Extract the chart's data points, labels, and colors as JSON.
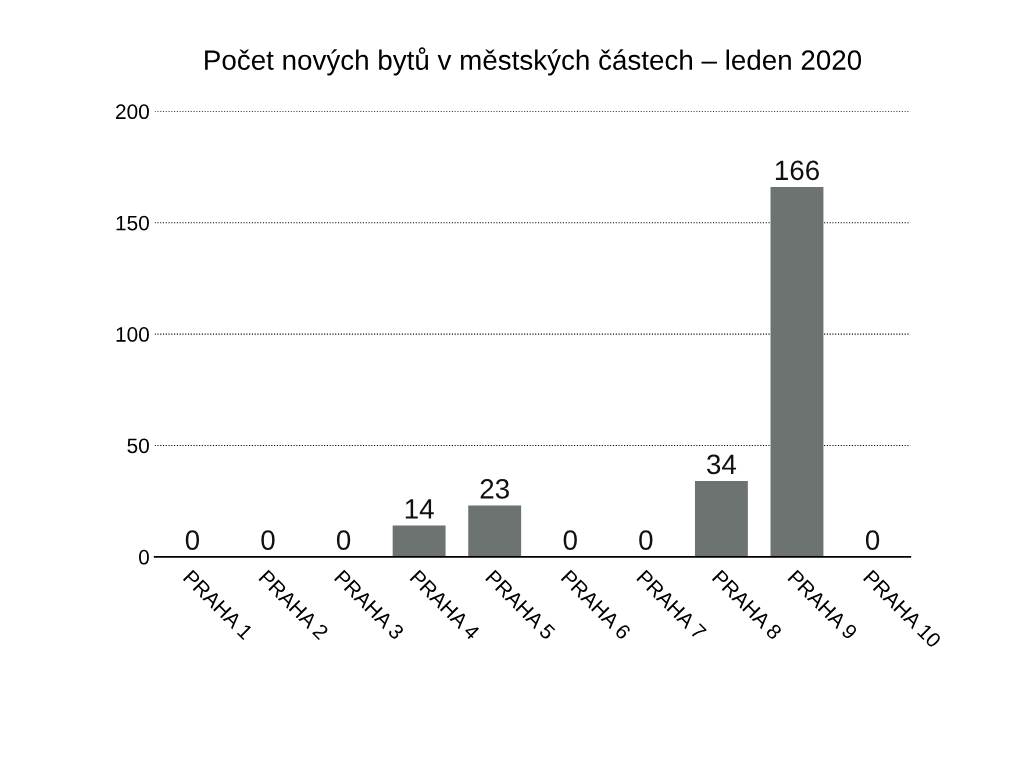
{
  "chart_data": {
    "type": "bar",
    "title": "Počet nových bytů v městských částech – leden 2020",
    "categories": [
      "PRAHA 1",
      "PRAHA 2",
      "PRAHA 3",
      "PRAHA 4",
      "PRAHA 5",
      "PRAHA 6",
      "PRAHA 7",
      "PRAHA 8",
      "PRAHA 9",
      "PRAHA 10"
    ],
    "values": [
      0,
      0,
      0,
      14,
      23,
      0,
      0,
      34,
      166,
      0
    ],
    "color": "#6d7370",
    "ylim": [
      0,
      200
    ],
    "yticks": [
      0,
      50,
      100,
      150,
      200
    ],
    "grid": "y",
    "data_labels": true,
    "legend": false
  }
}
